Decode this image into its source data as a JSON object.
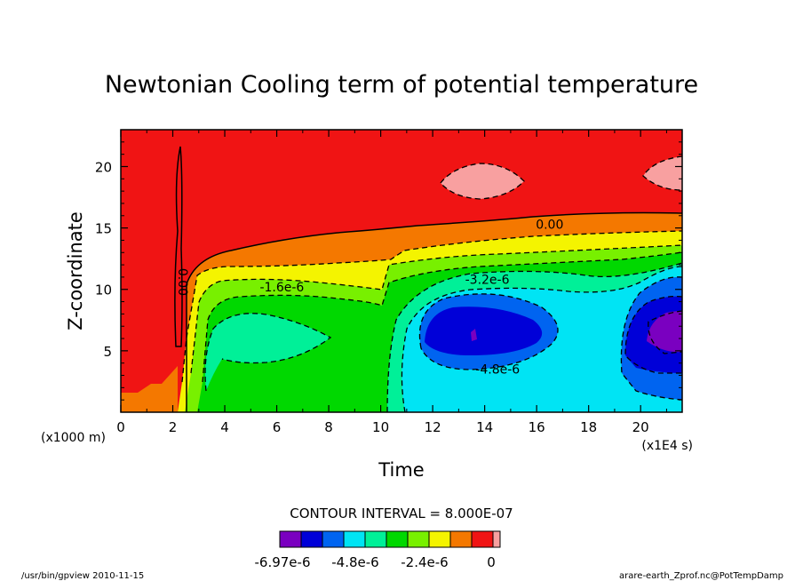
{
  "chart_data": {
    "type": "heatmap",
    "title": "Newtonian Cooling term of potential temperature",
    "xlabel": "Time",
    "ylabel": "Z-coordinate",
    "x_unit": "(x1E4 s)",
    "y_unit": "(x1000 m)",
    "xlim": [
      0,
      21.6
    ],
    "ylim": [
      0,
      23
    ],
    "x_ticks": [
      0,
      2,
      4,
      6,
      8,
      10,
      12,
      14,
      16,
      18,
      20
    ],
    "y_ticks": [
      5,
      10,
      15,
      20
    ],
    "x_tick_labels": [
      "0",
      "2",
      "4",
      "6",
      "8",
      "10",
      "12",
      "14",
      "16",
      "18",
      "20"
    ],
    "y_tick_labels": [
      "5",
      "10",
      "15",
      "20"
    ],
    "contour_interval_text": "CONTOUR INTERVAL = 8.000E-07",
    "contour_labels": [
      {
        "text": "0.00",
        "x": 16.5,
        "y": 15.3
      },
      {
        "text": "-1.6e-6",
        "x": 6.2,
        "y": 10.2
      },
      {
        "text": "-3.2e-6",
        "x": 14.1,
        "y": 10.8
      },
      {
        "text": "-4.8e-6",
        "x": 14.5,
        "y": 3.5
      },
      {
        "text": "0.00",
        "x": 2.4,
        "y": 10.6
      }
    ],
    "colorbar": {
      "colors": [
        "#7a00c0",
        "#0000d8",
        "#0064f0",
        "#00e4f4",
        "#00f098",
        "#00d800",
        "#78f000",
        "#f4f400",
        "#f47800",
        "#f01414",
        "#f8a0a0"
      ],
      "labels": [
        "-6.97e-6",
        "-4.8e-6",
        "-2.4e-6",
        "0"
      ]
    }
  },
  "footer": {
    "left": "/usr/bin/gpview  2010-11-15",
    "right": "arare-earth_Zprof.nc@PotTempDamp"
  }
}
